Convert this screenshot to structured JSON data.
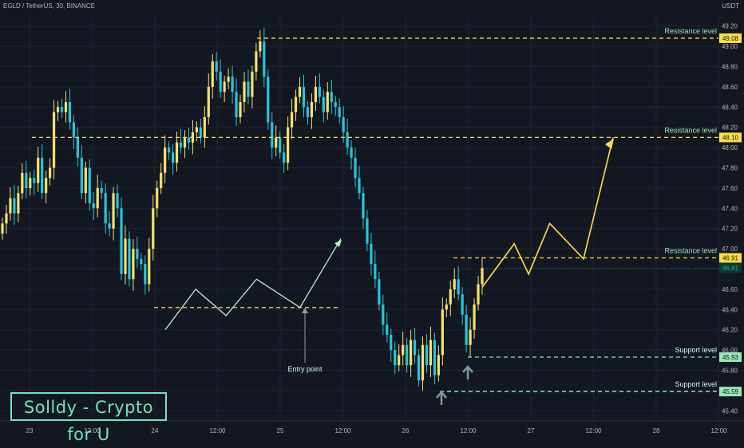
{
  "header": {
    "symbol": "EGLD / TetherUS, 30, BINANCE",
    "currency": "USDT"
  },
  "brand": "Solldy - Crypto for U",
  "colors": {
    "bg": "#131722",
    "up": "#f7e16b",
    "down": "#26c6da",
    "grid": "#1f2433",
    "resistance": "#fde047",
    "support": "#9ae6b4",
    "entry": "#b7f5c0",
    "forecast": "#fde047"
  },
  "chart_data": {
    "type": "candlestick",
    "xlabels": [
      "23",
      "12:00",
      "24",
      "12:00",
      "25",
      "12:00",
      "26",
      "12:00",
      "27",
      "12:00",
      "28",
      "12:00"
    ],
    "ylim": [
      45.3,
      49.3
    ],
    "yticks": [
      45.4,
      45.6,
      45.8,
      46.0,
      46.2,
      46.4,
      46.6,
      46.8,
      47.0,
      47.2,
      47.4,
      47.6,
      47.8,
      48.0,
      48.2,
      48.4,
      48.6,
      48.8,
      49.0,
      49.2
    ],
    "levels": [
      {
        "label": "Resistance level",
        "value": 49.08,
        "tag": "49.08",
        "kind": "resistance"
      },
      {
        "label": "Resistance level",
        "value": 48.1,
        "tag": "48.10",
        "kind": "resistance"
      },
      {
        "label": "Resistance level",
        "value": 46.91,
        "tag": "46.91",
        "kind": "resistance"
      },
      {
        "label": "Support level",
        "value": 45.93,
        "tag": "45.93",
        "kind": "support"
      },
      {
        "label": "Support level",
        "value": 45.59,
        "tag": "45.59",
        "kind": "support"
      }
    ],
    "last_price": "46.81",
    "entry_label": "Entry point",
    "entry_level": 46.42,
    "candles_close": [
      47.25,
      47.35,
      47.5,
      47.35,
      47.55,
      47.75,
      47.6,
      47.7,
      47.65,
      47.9,
      47.55,
      47.7,
      47.8,
      48.35,
      48.4,
      48.35,
      48.45,
      48.25,
      48.1,
      47.9,
      47.55,
      47.8,
      47.45,
      47.4,
      47.6,
      47.55,
      47.25,
      47.2,
      47.55,
      47.4,
      46.75,
      47.1,
      46.7,
      47.0,
      46.9,
      46.85,
      46.65,
      47.0,
      47.4,
      47.6,
      47.75,
      48.0,
      47.95,
      47.85,
      48.05,
      48.0,
      48.1,
      48.05,
      48.15,
      48.2,
      48.1,
      48.3,
      48.6,
      48.85,
      48.75,
      48.55,
      48.65,
      48.7,
      48.55,
      48.3,
      48.45,
      48.65,
      48.5,
      48.75,
      48.95,
      49.05,
      48.7,
      48.25,
      48.0,
      48.1,
      47.95,
      47.85,
      48.2,
      48.35,
      48.5,
      48.6,
      48.4,
      48.3,
      48.45,
      48.6,
      48.5,
      48.35,
      48.55,
      48.45,
      48.4,
      48.3,
      48.15,
      48.0,
      47.9,
      47.7,
      47.55,
      47.3,
      47.05,
      46.85,
      46.7,
      46.45,
      46.25,
      46.15,
      46.0,
      45.85,
      45.95,
      46.05,
      45.85,
      46.1,
      45.95,
      45.7,
      46.05,
      45.85,
      46.1,
      45.75,
      45.95,
      46.4,
      46.45,
      46.6,
      46.7,
      46.55,
      46.35,
      46.05,
      46.2,
      46.45,
      46.65,
      46.81
    ],
    "forecast": [
      [
        46.6,
        46.62
      ],
      [
        46.98,
        47.05
      ],
      [
        47.15,
        46.75
      ],
      [
        47.4,
        47.25
      ],
      [
        47.8,
        46.9
      ],
      [
        48.15,
        48.1
      ]
    ],
    "entry_path": [
      [
        45.9,
        46.2
      ],
      [
        46.25,
        46.6
      ],
      [
        46.6,
        46.34
      ],
      [
        46.95,
        46.7
      ],
      [
        47.45,
        46.42
      ],
      [
        47.92,
        47.1
      ]
    ]
  }
}
